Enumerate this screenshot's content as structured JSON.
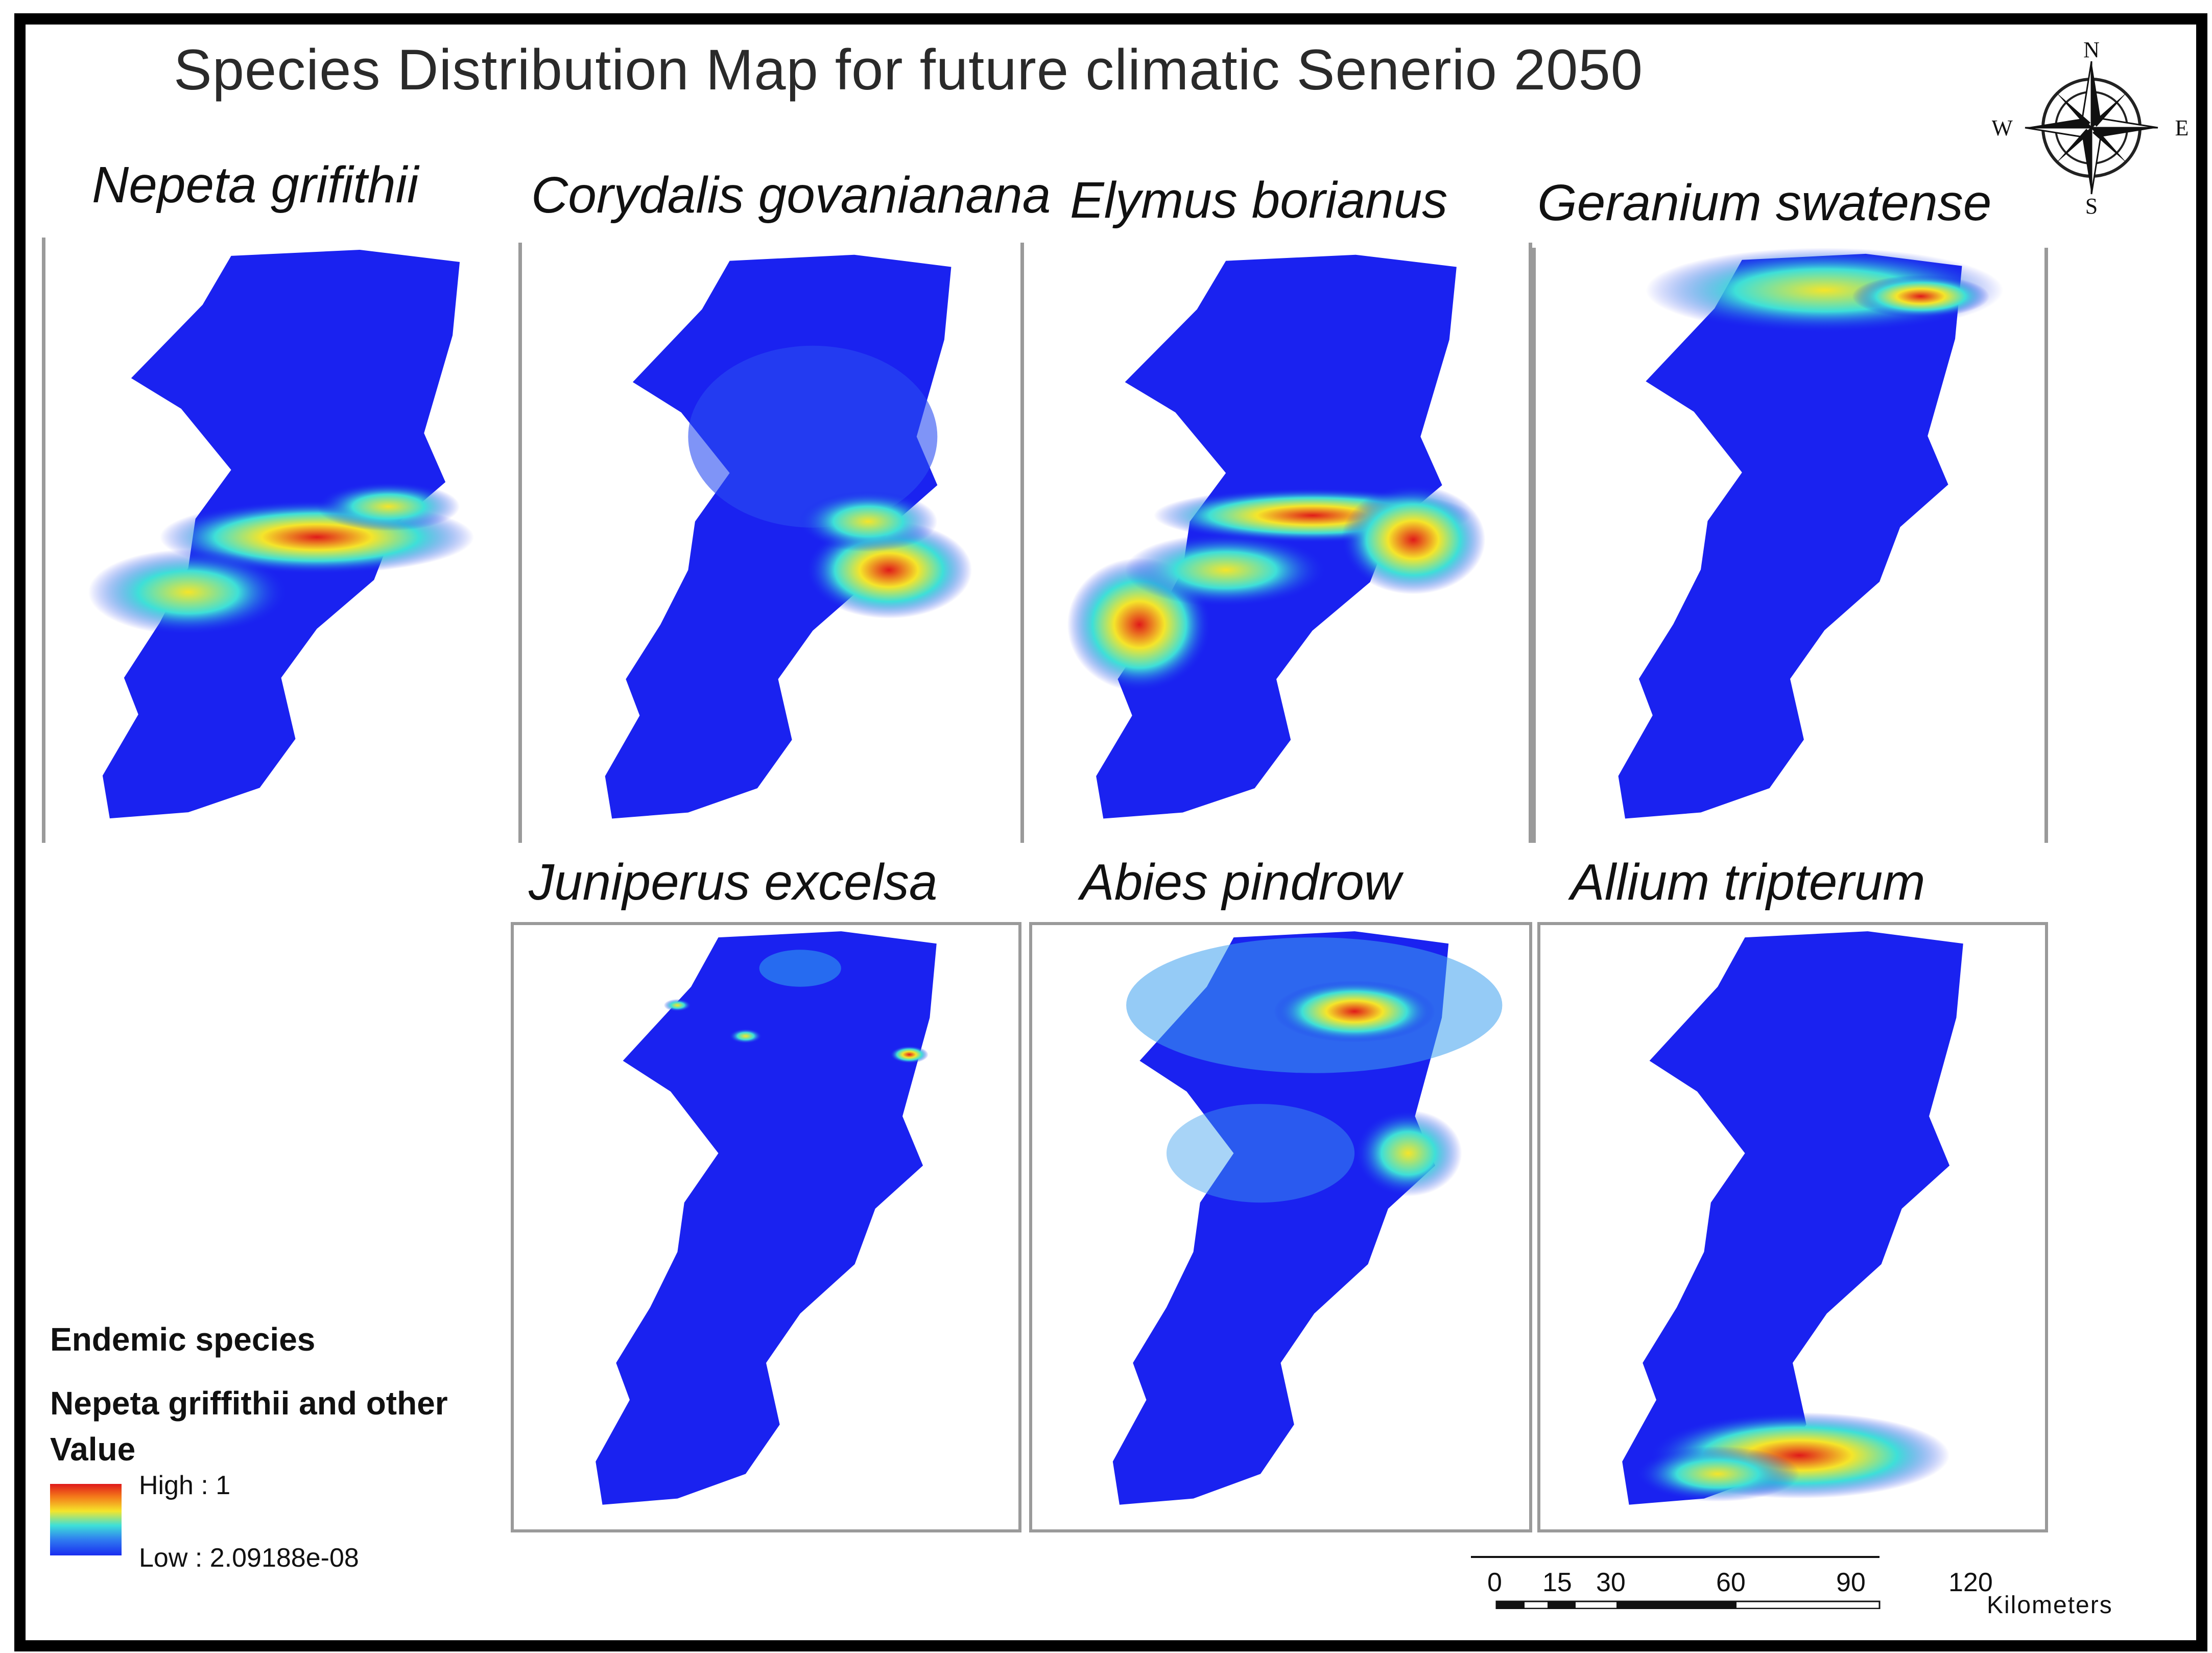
{
  "title": "Species Distribution Map for future climatic Senerio 2050",
  "compass": {
    "icon": "compass-rose-icon",
    "n": "N",
    "s": "S",
    "e": "E",
    "w": "W"
  },
  "panels": [
    {
      "label": "Nepeta grifithii"
    },
    {
      "label": "Corydalis govanianana"
    },
    {
      "label": "Elymus borianus"
    },
    {
      "label": "Geranium swatense"
    },
    {
      "label": "Juniperus excelsa"
    },
    {
      "label": "Abies pindrow"
    },
    {
      "label": "Allium tripterum"
    }
  ],
  "legend": {
    "title": "Endemic species",
    "subtitle": "Nepeta griffithii and other",
    "value_label": "Value",
    "high": "High : 1",
    "low": "Low : 2.09188e-08",
    "ramp_colors": [
      "#e01a1a",
      "#f5e52a",
      "#3ee0d8",
      "#1a2cf0"
    ]
  },
  "scale_bar": {
    "ticks": [
      "0",
      "15",
      "30",
      "60",
      "90",
      "120"
    ],
    "unit": "Kilometers"
  },
  "colors": {
    "low": "#1a22f0",
    "mid": "#3ee0d8",
    "high_mid": "#f5e52a",
    "high": "#e01a1a"
  }
}
